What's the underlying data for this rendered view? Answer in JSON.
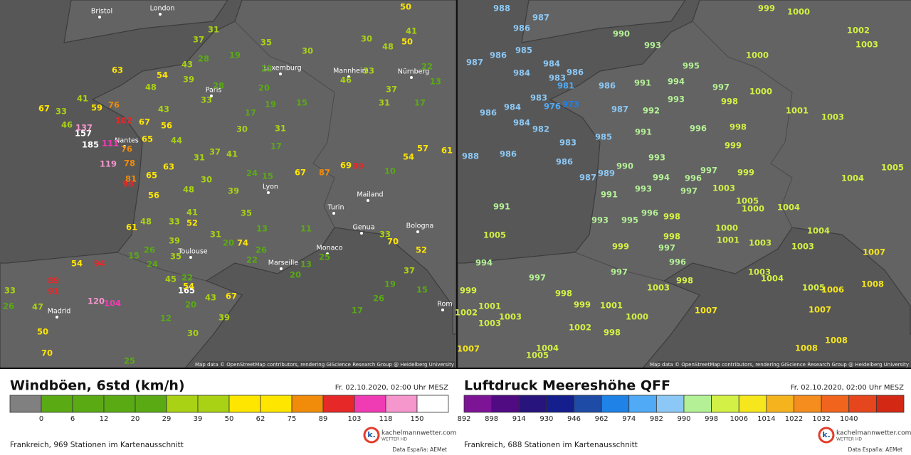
{
  "panels": [
    {
      "title": "Windböen, 6std (km/h)",
      "date": "Fr. 02.10.2020, 02:00 Uhr MESZ",
      "footer": "Frankreich, 969 Stationen im Kartenausschnitt",
      "attribution": "Map data © OpenStreetMap contributors, rendering GIScience Research Group @ Heidelberg University",
      "legend": {
        "labels": [
          0,
          6,
          12,
          20,
          29,
          39,
          50,
          62,
          75,
          89,
          103,
          118,
          150
        ],
        "colors": [
          "#808080",
          "#5aaa14",
          "#5aaa14",
          "#5aaa14",
          "#5aaa14",
          "#aad214",
          "#aad214",
          "#ffe600",
          "#ffe600",
          "#f08c0a",
          "#e62828",
          "#f03cb4",
          "#f596cd",
          "#ffffff"
        ]
      },
      "cities": [
        "Bristol",
        "London",
        "Luxemburg",
        "Paris",
        "Nantes",
        "Lyon",
        "Turin",
        "Mailand",
        "Genua",
        "Bologna",
        "Monaco",
        "Toulouse",
        "Marseille",
        "Madrid",
        "Rom",
        "Mannheim",
        "Nürnberg"
      ],
      "stations": [
        63,
        54,
        43,
        48,
        39,
        41,
        59,
        76,
        102,
        67,
        33,
        46,
        67,
        56,
        43,
        157,
        137,
        185,
        111,
        76,
        65,
        44,
        119,
        78,
        65,
        63,
        81,
        98,
        56,
        48,
        30,
        37,
        41,
        31,
        30,
        17,
        19,
        15,
        20,
        37,
        28,
        31,
        33,
        28,
        24,
        15,
        17,
        31,
        39,
        35,
        41,
        52,
        33,
        31,
        48,
        61,
        26,
        15,
        24,
        39,
        35,
        22,
        20,
        74,
        26,
        22,
        13,
        20,
        25,
        11,
        13,
        33,
        70,
        52,
        37,
        19,
        17,
        26,
        15,
        61,
        57,
        54,
        67,
        87,
        69,
        89,
        10,
        50,
        41,
        50,
        30,
        48,
        33,
        46,
        37,
        31,
        13,
        22,
        17,
        19,
        30,
        35,
        22,
        54,
        94,
        89,
        91,
        120,
        104,
        165,
        67,
        43,
        20,
        47,
        50,
        70,
        33,
        26,
        45,
        54,
        39,
        30,
        25,
        12
      ]
    },
    {
      "title": "Luftdruck Meereshöhe QFF",
      "date": "Fr. 02.10.2020, 02:00 Uhr MESZ",
      "footer": "Frankreich, 688 Stationen im Kartenausschnitt",
      "attribution": "Map data © OpenStreetMap contributors, rendering GIScience Research Group @ Heidelberg University",
      "legend": {
        "labels": [
          892,
          898,
          914,
          930,
          946,
          962,
          974,
          982,
          990,
          998,
          1006,
          1014,
          1022,
          1032,
          1040
        ],
        "colors": [
          "#7d1496",
          "#500a82",
          "#28147d",
          "#141e8c",
          "#1e4ba5",
          "#1e82e6",
          "#50aaf5",
          "#8cc8f5",
          "#b4f096",
          "#d2f046",
          "#f5e61e",
          "#f5b41e",
          "#f58c1e",
          "#f0641e",
          "#e6461e",
          "#d22814"
        ]
      },
      "cities": [],
      "stations": [
        988,
        987,
        986,
        985,
        987,
        986,
        984,
        984,
        981,
        983,
        986,
        983,
        976,
        973,
        986,
        984,
        982,
        984,
        988,
        986,
        986,
        987,
        983,
        989,
        985,
        986,
        987,
        990,
        993,
        991,
        992,
        991,
        993,
        990,
        994,
        996,
        997,
        993,
        991,
        993,
        995,
        996,
        998,
        998,
        997,
        997,
        994,
        993,
        995,
        997,
        996,
        998,
        998,
        999,
        1000,
        1000,
        1001,
        1003,
        1003,
        1002,
        1000,
        999,
        1005,
        1004,
        1007,
        1004,
        1003,
        1005,
        1006,
        1008,
        1007,
        1008,
        1008,
        1004,
        1003,
        1001,
        1000,
        1005,
        1000,
        999,
        1004,
        1003,
        998,
        996,
        999,
        997,
        998,
        999,
        1001,
        1002,
        1003,
        1000,
        1007,
        999,
        1001,
        1002,
        1003,
        1003,
        1004,
        1005,
        1007,
        1005,
        991,
        994,
        997,
        998,
        1003
      ]
    }
  ],
  "brand": "kachelmannwetter.com",
  "brand_sub": "WETTER HD",
  "credit": "Data España: AEMet"
}
